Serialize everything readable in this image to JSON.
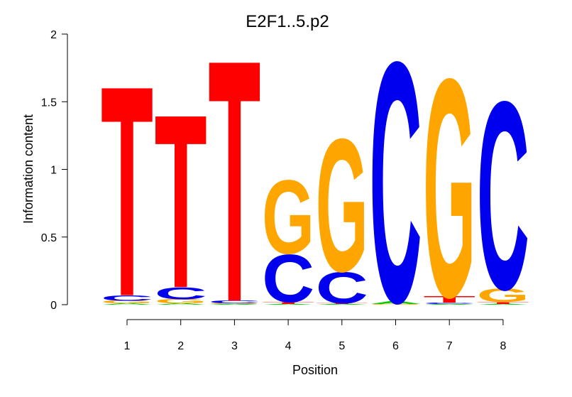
{
  "chart_data": {
    "type": "sequence-logo",
    "title": "E2F1..5.p2",
    "xlabel": "Position",
    "ylabel": "Information content",
    "ylim": [
      0,
      2
    ],
    "yticks": [
      0,
      0.5,
      1,
      1.5,
      2
    ],
    "ytick_labels": [
      "0",
      "0.5",
      "1",
      "1.5",
      "2"
    ],
    "positions": [
      "1",
      "2",
      "3",
      "4",
      "5",
      "6",
      "7",
      "8"
    ],
    "colors": {
      "A": "#00cc00",
      "C": "#0000ee",
      "G": "#ffa500",
      "T": "#ff0000"
    },
    "stacks": [
      [
        {
          "letter": "A",
          "height": 0.01
        },
        {
          "letter": "G",
          "height": 0.02
        },
        {
          "letter": "C",
          "height": 0.04
        },
        {
          "letter": "T",
          "height": 1.6
        }
      ],
      [
        {
          "letter": "A",
          "height": 0.01
        },
        {
          "letter": "G",
          "height": 0.03
        },
        {
          "letter": "C",
          "height": 0.09
        },
        {
          "letter": "T",
          "height": 1.32
        }
      ],
      [
        {
          "letter": "A",
          "height": 0.005
        },
        {
          "letter": "G",
          "height": 0.005
        },
        {
          "letter": "C",
          "height": 0.02
        },
        {
          "letter": "T",
          "height": 1.84
        }
      ],
      [
        {
          "letter": "A",
          "height": 0.005
        },
        {
          "letter": "T",
          "height": 0.015
        },
        {
          "letter": "C",
          "height": 0.36
        },
        {
          "letter": "G",
          "height": 0.56
        }
      ],
      [
        {
          "letter": "A",
          "height": 0.005
        },
        {
          "letter": "T",
          "height": 0.005
        },
        {
          "letter": "C",
          "height": 0.24
        },
        {
          "letter": "G",
          "height": 1.01
        }
      ],
      [
        {
          "letter": "G",
          "height": 0.005
        },
        {
          "letter": "A",
          "height": 0.02
        },
        {
          "letter": "C",
          "height": 1.83
        }
      ],
      [
        {
          "letter": "A",
          "height": 0.005
        },
        {
          "letter": "C",
          "height": 0.01
        },
        {
          "letter": "T",
          "height": 0.05
        },
        {
          "letter": "G",
          "height": 1.66
        }
      ],
      [
        {
          "letter": "A",
          "height": 0.005
        },
        {
          "letter": "T",
          "height": 0.015
        },
        {
          "letter": "G",
          "height": 0.1
        },
        {
          "letter": "C",
          "height": 1.43
        }
      ]
    ]
  }
}
